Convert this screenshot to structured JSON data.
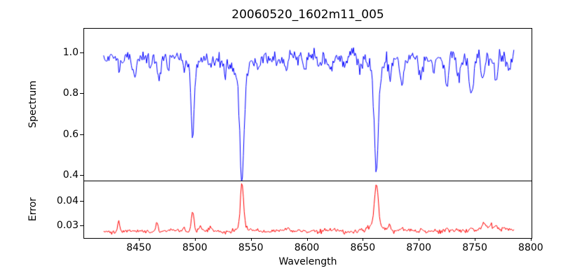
{
  "title": "20060520_1602m11_005",
  "colors": {
    "spectrum_line": "#0000ff",
    "error_line": "#ff0000",
    "axis": "#000000",
    "background": "#ffffff",
    "text": "#000000"
  },
  "xaxis": {
    "label": "Wavelength",
    "range": [
      8400.5,
      8800.7
    ],
    "ticks": [
      {
        "label": "8450",
        "value": 8450
      },
      {
        "label": "8500",
        "value": 8500
      },
      {
        "label": "8550",
        "value": 8550
      },
      {
        "label": "8600",
        "value": 8600
      },
      {
        "label": "8650",
        "value": 8650
      },
      {
        "label": "8700",
        "value": 8700
      },
      {
        "label": "8750",
        "value": 8750
      },
      {
        "label": "8800",
        "value": 8800
      }
    ]
  },
  "spectrum_axis": {
    "label": "Spectrum",
    "range": [
      0.372,
      1.12
    ],
    "ticks": [
      {
        "label": "1.0",
        "value": 1.0
      },
      {
        "label": "0.8",
        "value": 0.8
      },
      {
        "label": "0.6",
        "value": 0.6
      },
      {
        "label": "0.4",
        "value": 0.4
      }
    ]
  },
  "error_axis": {
    "label": "Error",
    "range": [
      0.0249,
      0.0483
    ],
    "ticks": [
      {
        "label": "0.04",
        "value": 0.04
      },
      {
        "label": "0.03",
        "value": 0.03
      }
    ]
  },
  "chart_data": [
    {
      "name": "spectrum",
      "type": "line",
      "panel": "top",
      "color": "#0000ff",
      "title": "20060520_1602m11_005",
      "xlabel": "Wavelength",
      "ylabel": "Spectrum",
      "xlim": [
        8400.5,
        8800.7
      ],
      "ylim": [
        0.372,
        1.12
      ],
      "x_start": 8418.5,
      "x_end": 8785,
      "x_step": 0.8,
      "continuum": 0.975,
      "continuum_wiggle_amp": 0.005,
      "continuum_wiggle_freq": 0.035,
      "noise_sigma_start": 0.016,
      "noise_sigma_end": 0.021,
      "seed": 1337,
      "absorption_lines": [
        [
          8433,
          0.05,
          1.2
        ],
        [
          8446,
          0.1,
          1.6
        ],
        [
          8460,
          0.05,
          1.2
        ],
        [
          8468,
          0.1,
          1.6
        ],
        [
          8476,
          0.05,
          1.2
        ],
        [
          8490,
          0.05,
          1.2
        ],
        [
          8498.02,
          0.34,
          1.3
        ],
        [
          8498.02,
          0.05,
          5.0
        ],
        [
          8514,
          0.06,
          1.3
        ],
        [
          8527,
          0.06,
          1.3
        ],
        [
          8536,
          0.05,
          1.2
        ],
        [
          8542.09,
          0.51,
          1.9
        ],
        [
          8542.09,
          0.07,
          7.0
        ],
        [
          8556,
          0.05,
          1.2
        ],
        [
          8582,
          0.06,
          1.4
        ],
        [
          8598,
          0.07,
          1.4
        ],
        [
          8611,
          0.05,
          1.2
        ],
        [
          8621,
          0.07,
          1.4
        ],
        [
          8634,
          0.05,
          1.2
        ],
        [
          8648,
          0.06,
          1.3
        ],
        [
          8662.14,
          0.49,
          1.8
        ],
        [
          8662.14,
          0.07,
          6.0
        ],
        [
          8674,
          0.09,
          1.4
        ],
        [
          8685,
          0.13,
          1.8
        ],
        [
          8702,
          0.09,
          1.6
        ],
        [
          8713,
          0.06,
          1.3
        ],
        [
          8725,
          0.12,
          1.8
        ],
        [
          8736,
          0.07,
          1.4
        ],
        [
          8747,
          0.17,
          1.9
        ],
        [
          8757,
          0.08,
          1.4
        ],
        [
          8769,
          0.1,
          1.6
        ],
        [
          8780,
          0.07,
          1.3
        ]
      ],
      "key_points": {
        "continuum_level": 0.975,
        "ca_ii_triplet_minima": [
          {
            "wavelength": 8498,
            "flux": 0.58
          },
          {
            "wavelength": 8542,
            "flux": 0.4
          },
          {
            "wavelength": 8662,
            "flux": 0.41
          }
        ]
      }
    },
    {
      "name": "error",
      "type": "line",
      "panel": "bottom",
      "color": "#ff0000",
      "xlabel": "Wavelength",
      "ylabel": "Error",
      "xlim": [
        8400.5,
        8800.7
      ],
      "ylim": [
        0.0249,
        0.0483
      ],
      "x_start": 8418.5,
      "x_end": 8785,
      "x_step": 0.8,
      "baseline": 0.0277,
      "baseline_wiggle_amp": 0.0003,
      "baseline_wiggle_freq": 0.18,
      "right_rise": 0.0009,
      "right_rise_start": 8720,
      "noise_sigma_start": 0.00035,
      "noise_sigma_end": 0.00055,
      "seed": 2024,
      "spikes": [
        [
          8432,
          0.0042,
          1.0
        ],
        [
          8466,
          0.0038,
          1.0
        ],
        [
          8490,
          0.001,
          1.0
        ],
        [
          8498,
          0.0085,
          1.2
        ],
        [
          8505,
          0.0022,
          1.0
        ],
        [
          8514,
          0.0015,
          1.0
        ],
        [
          8542.1,
          0.017,
          1.4
        ],
        [
          8542.1,
          0.002,
          4.0
        ],
        [
          8556,
          0.001,
          1.0
        ],
        [
          8582,
          0.0008,
          1.0
        ],
        [
          8598,
          0.001,
          1.0
        ],
        [
          8621,
          0.0008,
          1.0
        ],
        [
          8662.1,
          0.0165,
          1.7
        ],
        [
          8662.1,
          0.003,
          5.0
        ],
        [
          8674,
          0.0025,
          1.2
        ],
        [
          8685,
          0.0012,
          1.0
        ],
        [
          8702,
          0.001,
          1.0
        ],
        [
          8725,
          0.0012,
          1.0
        ],
        [
          8747,
          0.0012,
          1.0
        ],
        [
          8758,
          0.0025,
          1.2
        ],
        [
          8764,
          0.002,
          1.0
        ],
        [
          8769,
          0.0022,
          1.0
        ],
        [
          8776,
          0.0015,
          1.0
        ]
      ],
      "key_points": {
        "baseline_level": 0.028,
        "spike_peaks": [
          {
            "wavelength": 8498,
            "error": 0.037
          },
          {
            "wavelength": 8542,
            "error": 0.046
          },
          {
            "wavelength": 8662,
            "error": 0.047
          }
        ]
      }
    }
  ]
}
